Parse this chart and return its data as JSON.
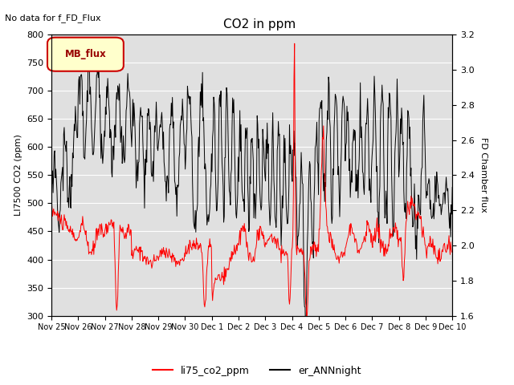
{
  "title": "CO2 in ppm",
  "ylabel_left": "LI7500 CO2 (ppm)",
  "ylabel_right": "FD Chamber flux",
  "ylim_left": [
    300,
    800
  ],
  "ylim_right": [
    1.6,
    3.2
  ],
  "yticks_left": [
    300,
    350,
    400,
    450,
    500,
    550,
    600,
    650,
    700,
    750,
    800
  ],
  "yticks_right": [
    1.6,
    1.8,
    2.0,
    2.2,
    2.4,
    2.6,
    2.8,
    3.0,
    3.2
  ],
  "xlabel": "",
  "no_data_text": "No data for f_FD_Flux",
  "legend_box_text": "MB_flux",
  "legend_entries": [
    "li75_co2_ppm",
    "er_ANNnight"
  ],
  "legend_colors": [
    "red",
    "black"
  ],
  "line_red_color": "red",
  "line_black_color": "black",
  "background_color": "#e0e0e0",
  "fig_background": "#ffffff",
  "xtick_labels": [
    "Nov 25",
    "Nov 26",
    "Nov 27",
    "Nov 28",
    "Nov 29",
    "Nov 30",
    "Dec 1",
    "Dec 2",
    "Dec 3",
    "Dec 4",
    "Dec 5",
    "Dec 6",
    "Dec 7",
    "Dec 8",
    "Dec 9",
    "Dec 10"
  ],
  "seed": 42
}
